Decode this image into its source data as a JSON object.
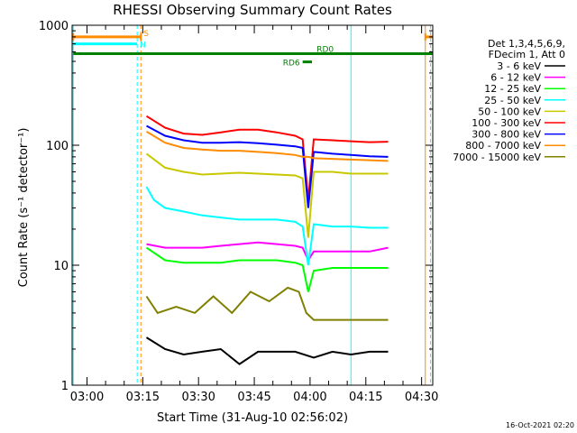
{
  "chart_data": {
    "type": "line",
    "title": "RHESSI Observing Summary Count Rates",
    "xlabel": "Start Time (31-Aug-10 02:56:02)",
    "ylabel": "Count Rate (s⁻¹ detector⁻¹)",
    "y_scale": "log",
    "ylim": [
      1,
      1000
    ],
    "xlim_minutes": [
      0,
      97
    ],
    "x_ticks": [
      {
        "label": "03:00",
        "minutes": 4
      },
      {
        "label": "03:15",
        "minutes": 19
      },
      {
        "label": "03:30",
        "minutes": 34
      },
      {
        "label": "03:45",
        "minutes": 49
      },
      {
        "label": "04:00",
        "minutes": 64
      },
      {
        "label": "04:15",
        "minutes": 79
      },
      {
        "label": "04:30",
        "minutes": 94
      }
    ],
    "y_ticks": [
      {
        "label": "1",
        "value": 1
      },
      {
        "label": "10",
        "value": 10
      },
      {
        "label": "100",
        "value": 100
      },
      {
        "label": "1000",
        "value": 1000
      }
    ],
    "legend_header": [
      "Det 1,3,4,5,6,9,",
      "FDecim 1, Att 0"
    ],
    "legend_placement": "right",
    "series": [
      {
        "name": "3 - 6 keV",
        "color": "#000000",
        "x": [
          20.0,
          25.0,
          30.0,
          35.0,
          40.0,
          45.0,
          50.0,
          55.0,
          60.0,
          65.0,
          70.0,
          75.0,
          80.0,
          85.0
        ],
        "y": [
          2.5,
          2.0,
          1.8,
          1.9,
          2.0,
          1.5,
          1.9,
          1.9,
          1.9,
          1.7,
          1.9,
          1.8,
          1.9,
          1.9
        ]
      },
      {
        "name": "6 - 12 keV",
        "color": "#ff00ff",
        "x": [
          20.0,
          25.0,
          30.0,
          35.0,
          40.0,
          45.0,
          50.0,
          55.0,
          60.0,
          62.0,
          63.5,
          65.0,
          70.0,
          75.0,
          80.0,
          85.0
        ],
        "y": [
          15.0,
          14.0,
          14.0,
          14.0,
          14.5,
          15.0,
          15.5,
          15.0,
          14.5,
          14.0,
          11.0,
          13.0,
          13.0,
          13.0,
          13.0,
          14.0
        ]
      },
      {
        "name": "12 - 25 keV",
        "color": "#00ff00",
        "x": [
          20.0,
          25.0,
          30.0,
          35.0,
          40.0,
          45.0,
          50.0,
          55.0,
          60.0,
          62.0,
          63.5,
          65.0,
          70.0,
          75.0,
          80.0,
          85.0
        ],
        "y": [
          14.0,
          11.0,
          10.5,
          10.5,
          10.5,
          11.0,
          11.0,
          11.0,
          10.5,
          10.0,
          6.0,
          9.0,
          9.5,
          9.5,
          9.5,
          9.5
        ]
      },
      {
        "name": "25 - 50 keV",
        "color": "#00ffff",
        "x": [
          20.0,
          22.0,
          25.0,
          30.0,
          35.0,
          40.0,
          45.0,
          50.0,
          55.0,
          60.0,
          62.0,
          63.5,
          65.0,
          70.0,
          75.0,
          80.0,
          85.0
        ],
        "y": [
          45.0,
          35.0,
          30.0,
          28.0,
          26.0,
          25.0,
          24.0,
          24.0,
          24.0,
          23.0,
          21.0,
          10.0,
          22.0,
          21.0,
          21.0,
          20.5,
          20.5
        ]
      },
      {
        "name": "50 - 100 keV",
        "color": "#c8c800",
        "x": [
          20.0,
          25.0,
          30.0,
          35.0,
          40.0,
          45.0,
          50.0,
          55.0,
          60.0,
          62.0,
          63.5,
          65.0,
          70.0,
          75.0,
          80.0,
          85.0
        ],
        "y": [
          85.0,
          65.0,
          60.0,
          57.0,
          58.0,
          59.0,
          58.0,
          57.0,
          56.0,
          53.0,
          17.0,
          60.0,
          60.0,
          58.0,
          58.0,
          58.0
        ]
      },
      {
        "name": "100 - 300 keV",
        "color": "#ff0000",
        "x": [
          20.0,
          25.0,
          30.0,
          35.0,
          40.0,
          45.0,
          50.0,
          55.0,
          60.0,
          62.0,
          63.5,
          65.0,
          70.0,
          75.0,
          80.0,
          85.0
        ],
        "y": [
          175.0,
          140.0,
          125.0,
          122.0,
          128.0,
          135.0,
          135.0,
          128.0,
          120.0,
          112.0,
          35.0,
          112.0,
          110.0,
          108.0,
          106.0,
          107.0
        ]
      },
      {
        "name": "300 - 800 keV",
        "color": "#0000ff",
        "x": [
          20.0,
          25.0,
          30.0,
          35.0,
          40.0,
          45.0,
          50.0,
          55.0,
          60.0,
          62.0,
          63.5,
          65.0,
          70.0,
          75.0,
          80.0,
          85.0
        ],
        "y": [
          145.0,
          120.0,
          110.0,
          105.0,
          105.0,
          106.0,
          104.0,
          101.0,
          98.0,
          95.0,
          30.0,
          88.0,
          85.0,
          83.0,
          81.0,
          80.0
        ]
      },
      {
        "name": "800 - 7000 keV",
        "color": "#ff8c00",
        "x": [
          20.0,
          25.0,
          30.0,
          35.0,
          40.0,
          45.0,
          50.0,
          55.0,
          60.0,
          62.0,
          63.5,
          65.0,
          70.0,
          75.0,
          80.0,
          85.0
        ],
        "y": [
          130.0,
          105.0,
          95.0,
          92.0,
          90.0,
          90.0,
          88.0,
          86.0,
          83.0,
          80.0,
          80.0,
          78.0,
          77.0,
          76.0,
          75.0,
          74.0
        ]
      },
      {
        "name": "7000 - 15000 keV",
        "color": "#808000",
        "x": [
          20.0,
          23.0,
          28.0,
          33.0,
          38.0,
          43.0,
          48.0,
          53.0,
          58.0,
          61.0,
          63.0,
          65.0,
          70.0,
          75.0,
          80.0,
          85.0
        ],
        "y": [
          5.5,
          4.0,
          4.5,
          4.0,
          5.5,
          4.0,
          6.0,
          5.0,
          6.5,
          6.0,
          4.0,
          3.5,
          3.5,
          3.5,
          3.5,
          3.5
        ]
      }
    ],
    "annotations": [
      {
        "label": "S",
        "color": "#ff8c00",
        "x_start": 0.3,
        "x_end": 18.5,
        "y": 800,
        "caps": [
          0.3,
          18.5
        ]
      },
      {
        "label": "S",
        "color": "#ff8c00",
        "x_start": 95.0,
        "x_end": 97.0,
        "y": 800,
        "caps": [
          95.0
        ]
      },
      {
        "label": "N",
        "color": "#00ffff",
        "x_start": 0.3,
        "x_end": 17.5,
        "y": 700,
        "caps": []
      },
      {
        "label": "RD0",
        "color": "#008000",
        "x_start": 0.3,
        "x_end": 97.0,
        "y": 580,
        "caps": []
      },
      {
        "label": "RD6",
        "color": "#008000",
        "x_start": 62.0,
        "x_end": 64.5,
        "y": 495,
        "caps": []
      }
    ],
    "vertical_lines": [
      {
        "minutes": 0.3,
        "color": "#00ffff",
        "dashed": false
      },
      {
        "minutes": 17.5,
        "color": "#00ffff",
        "dashed": true
      },
      {
        "minutes": 18.5,
        "color": "#ff8c00",
        "dashed": true
      },
      {
        "minutes": 75.0,
        "color": "#00ffff",
        "dashed": false
      },
      {
        "minutes": 95.0,
        "color": "#ff8c00",
        "dashed": false
      },
      {
        "minutes": 96.4,
        "color": "#00ffff",
        "dashed": true
      }
    ]
  },
  "footer": {
    "timestamp": "16-Oct-2021 02:20"
  }
}
